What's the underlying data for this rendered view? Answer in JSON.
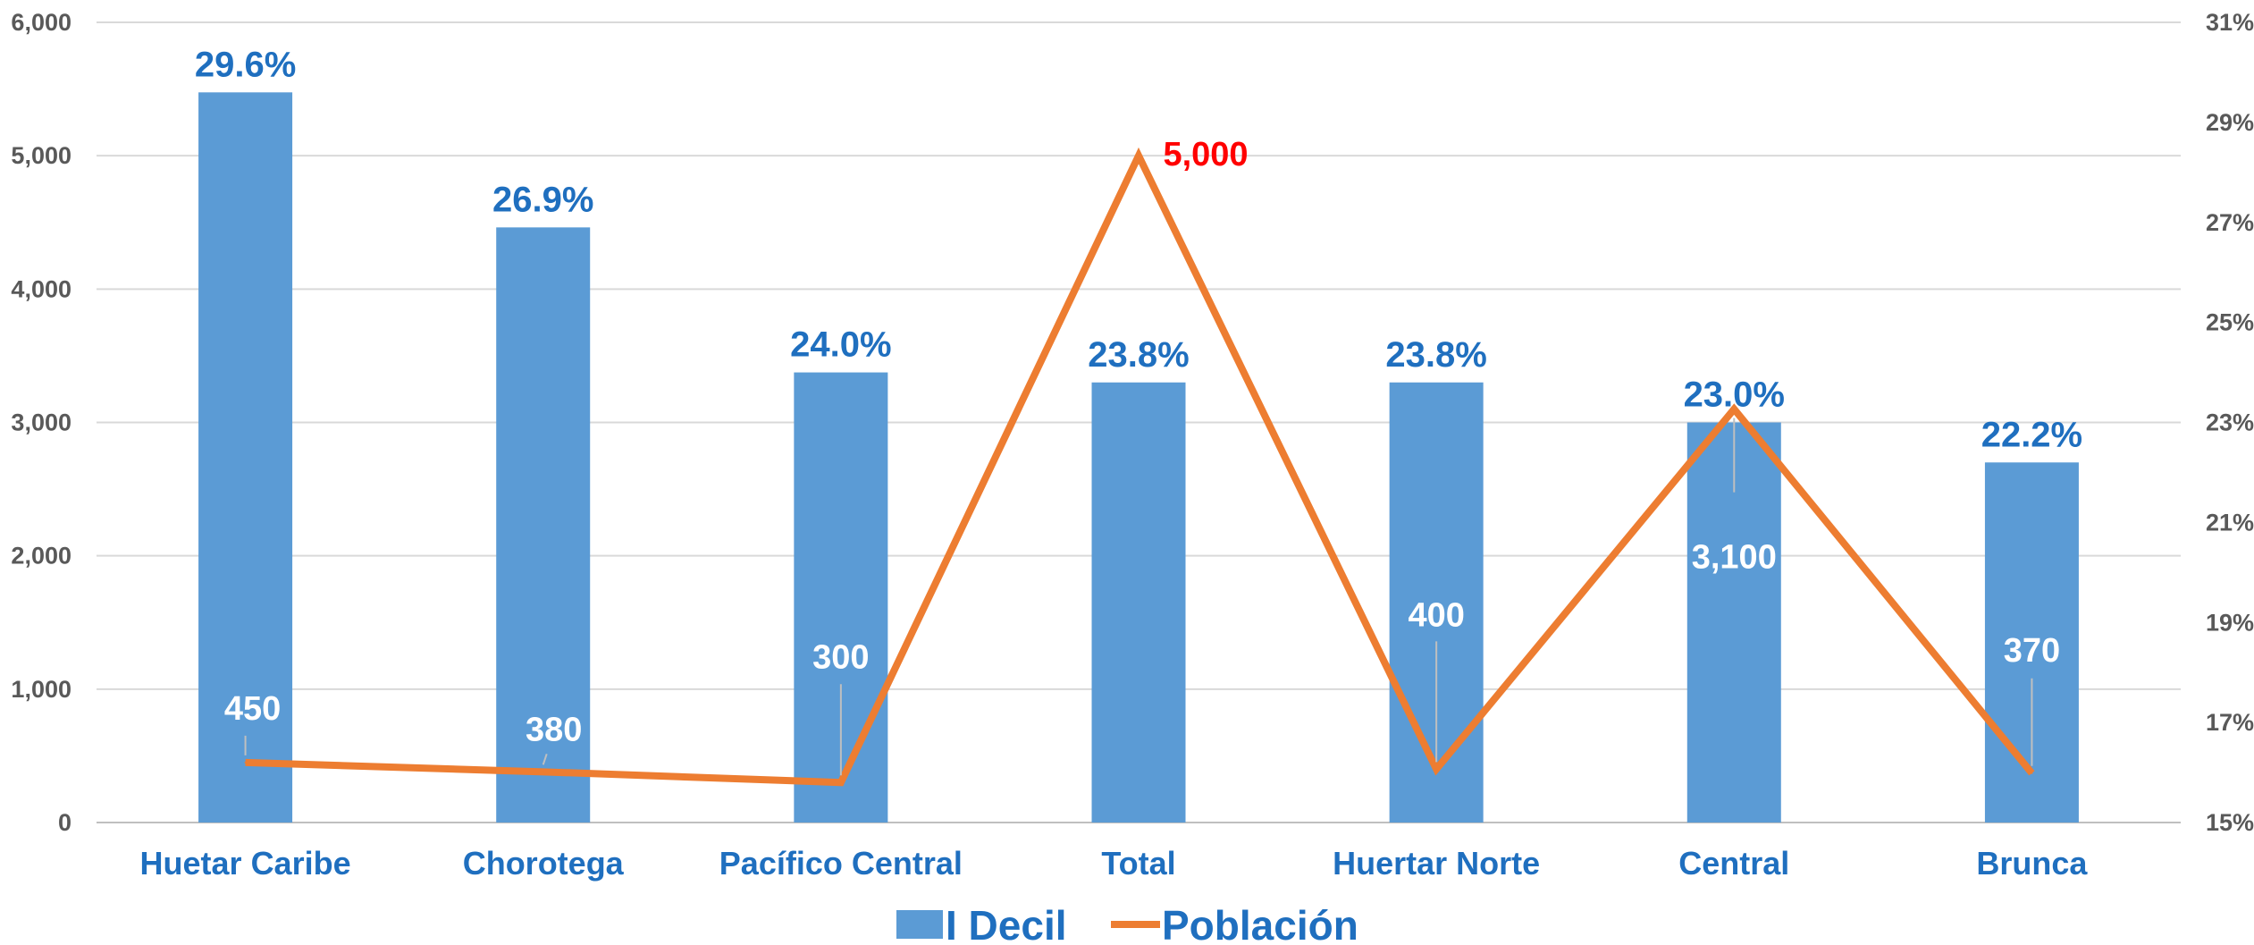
{
  "chart_data": {
    "type": "bar",
    "categories": [
      "Huetar Caribe",
      "Chorotega",
      "Pacífico Central",
      "Total",
      "Huertar Norte",
      "Central",
      "Brunca"
    ],
    "series": [
      {
        "name": "I Decil",
        "type": "bar",
        "axis": "right",
        "values": [
          29.6,
          26.9,
          24.0,
          23.8,
          23.8,
          23.0,
          22.2
        ],
        "labels": [
          "29.6%",
          "26.9%",
          "24.0%",
          "23.8%",
          "23.8%",
          "23.0%",
          "22.2%"
        ],
        "color": "#5b9bd5"
      },
      {
        "name": "Población",
        "type": "line",
        "axis": "left",
        "values": [
          450,
          380,
          300,
          5000,
          400,
          3100,
          370
        ],
        "labels": [
          "450",
          "380",
          "300",
          "5,000",
          "400",
          "3,100",
          "370"
        ],
        "color": "#ed7d31",
        "highlight_index": 3,
        "highlight_color": "#ff0000"
      }
    ],
    "left_axis": {
      "min": 0,
      "max": 6000,
      "ticks": [
        "0",
        "1,000",
        "2,000",
        "3,000",
        "4,000",
        "5,000",
        "6,000"
      ]
    },
    "right_axis": {
      "min": 15,
      "max": 31,
      "ticks": [
        "15%",
        "17%",
        "19%",
        "21%",
        "23%",
        "25%",
        "27%",
        "29%",
        "31%"
      ]
    },
    "grid": true,
    "legend_position": "bottom",
    "title": "",
    "xlabel": "",
    "ylabel": ""
  }
}
